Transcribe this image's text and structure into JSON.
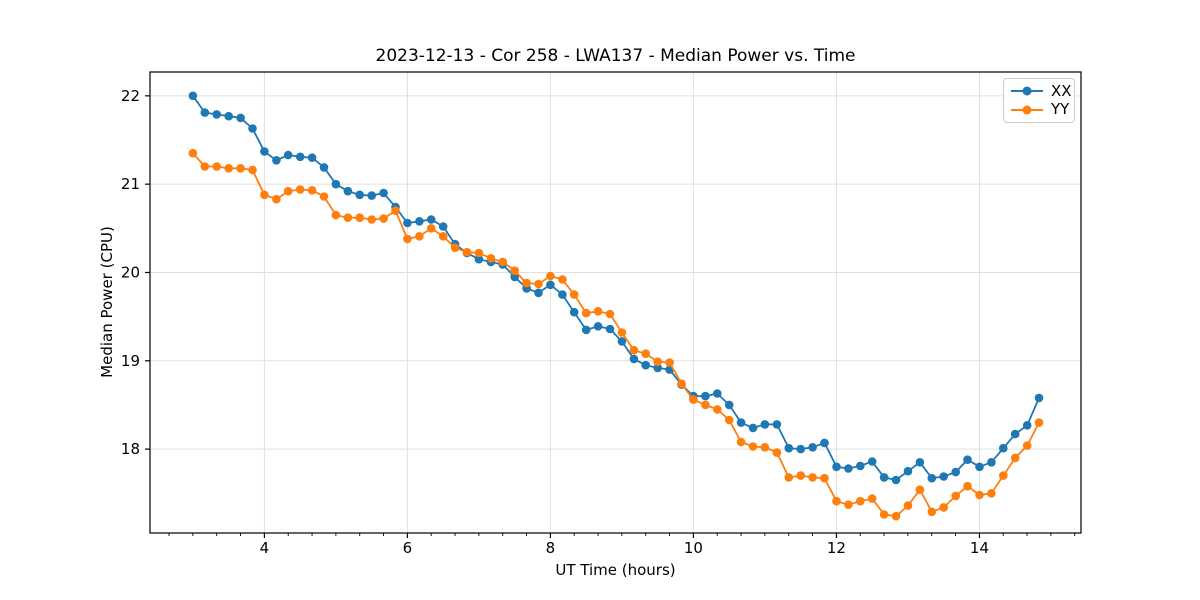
{
  "chart_data": {
    "type": "line",
    "title": "2023-12-13 - Cor 258 - LWA137 - Median Power vs. Time",
    "xlabel": "UT Time (hours)",
    "ylabel": "Median Power (CPU)",
    "xlim": [
      2.4,
      15.42
    ],
    "ylim": [
      17.05,
      22.27
    ],
    "xticks": [
      4,
      6,
      8,
      10,
      12,
      14
    ],
    "yticks": [
      18,
      19,
      20,
      21,
      22
    ],
    "x_minor_tick_step": 0.3333,
    "grid": true,
    "legend_position": "upper right",
    "colors": {
      "grid": "#e0e0e0",
      "axis": "#000000",
      "background": "#ffffff"
    },
    "x": [
      3.0,
      3.167,
      3.333,
      3.5,
      3.667,
      3.833,
      4.0,
      4.167,
      4.333,
      4.5,
      4.667,
      4.833,
      5.0,
      5.167,
      5.333,
      5.5,
      5.667,
      5.833,
      6.0,
      6.167,
      6.333,
      6.5,
      6.667,
      6.833,
      7.0,
      7.167,
      7.333,
      7.5,
      7.667,
      7.833,
      8.0,
      8.167,
      8.333,
      8.5,
      8.667,
      8.833,
      9.0,
      9.167,
      9.333,
      9.5,
      9.667,
      9.833,
      10.0,
      10.167,
      10.333,
      10.5,
      10.667,
      10.833,
      11.0,
      11.167,
      11.333,
      11.5,
      11.667,
      11.833,
      12.0,
      12.167,
      12.333,
      12.5,
      12.667,
      12.833,
      13.0,
      13.167,
      13.333,
      13.5,
      13.667,
      13.833,
      14.0,
      14.167,
      14.333,
      14.5,
      14.667,
      14.833
    ],
    "series": [
      {
        "name": "XX",
        "color": "#1f77b4",
        "values": [
          22.0,
          21.81,
          21.79,
          21.77,
          21.75,
          21.63,
          21.37,
          21.27,
          21.33,
          21.31,
          21.3,
          21.19,
          21.0,
          20.92,
          20.88,
          20.87,
          20.9,
          20.74,
          20.56,
          20.58,
          20.6,
          20.52,
          20.32,
          20.22,
          20.15,
          20.12,
          20.09,
          19.95,
          19.82,
          19.77,
          19.86,
          19.75,
          19.55,
          19.35,
          19.39,
          19.36,
          19.22,
          19.02,
          18.95,
          18.92,
          18.9,
          18.73,
          18.6,
          18.6,
          18.63,
          18.5,
          18.3,
          18.24,
          18.28,
          18.28,
          18.01,
          18.0,
          18.02,
          18.07,
          17.8,
          17.78,
          17.81,
          17.86,
          17.68,
          17.65,
          17.75,
          17.85,
          17.67,
          17.69,
          17.74,
          17.88,
          17.8,
          17.85,
          18.01,
          18.17,
          18.27,
          18.58
        ]
      },
      {
        "name": "YY",
        "color": "#ff7f0e",
        "values": [
          21.35,
          21.2,
          21.2,
          21.18,
          21.18,
          21.16,
          20.88,
          20.83,
          20.92,
          20.94,
          20.93,
          20.86,
          20.65,
          20.62,
          20.62,
          20.6,
          20.61,
          20.7,
          20.38,
          20.41,
          20.5,
          20.41,
          20.28,
          20.23,
          20.22,
          20.16,
          20.12,
          20.02,
          19.88,
          19.87,
          19.96,
          19.92,
          19.75,
          19.54,
          19.56,
          19.53,
          19.32,
          19.12,
          19.08,
          18.99,
          18.98,
          18.74,
          18.56,
          18.5,
          18.45,
          18.33,
          18.08,
          18.03,
          18.02,
          17.96,
          17.68,
          17.7,
          17.68,
          17.67,
          17.41,
          17.37,
          17.41,
          17.44,
          17.26,
          17.24,
          17.36,
          17.54,
          17.29,
          17.34,
          17.47,
          17.58,
          17.48,
          17.5,
          17.7,
          17.9,
          18.04,
          18.3
        ]
      }
    ]
  }
}
